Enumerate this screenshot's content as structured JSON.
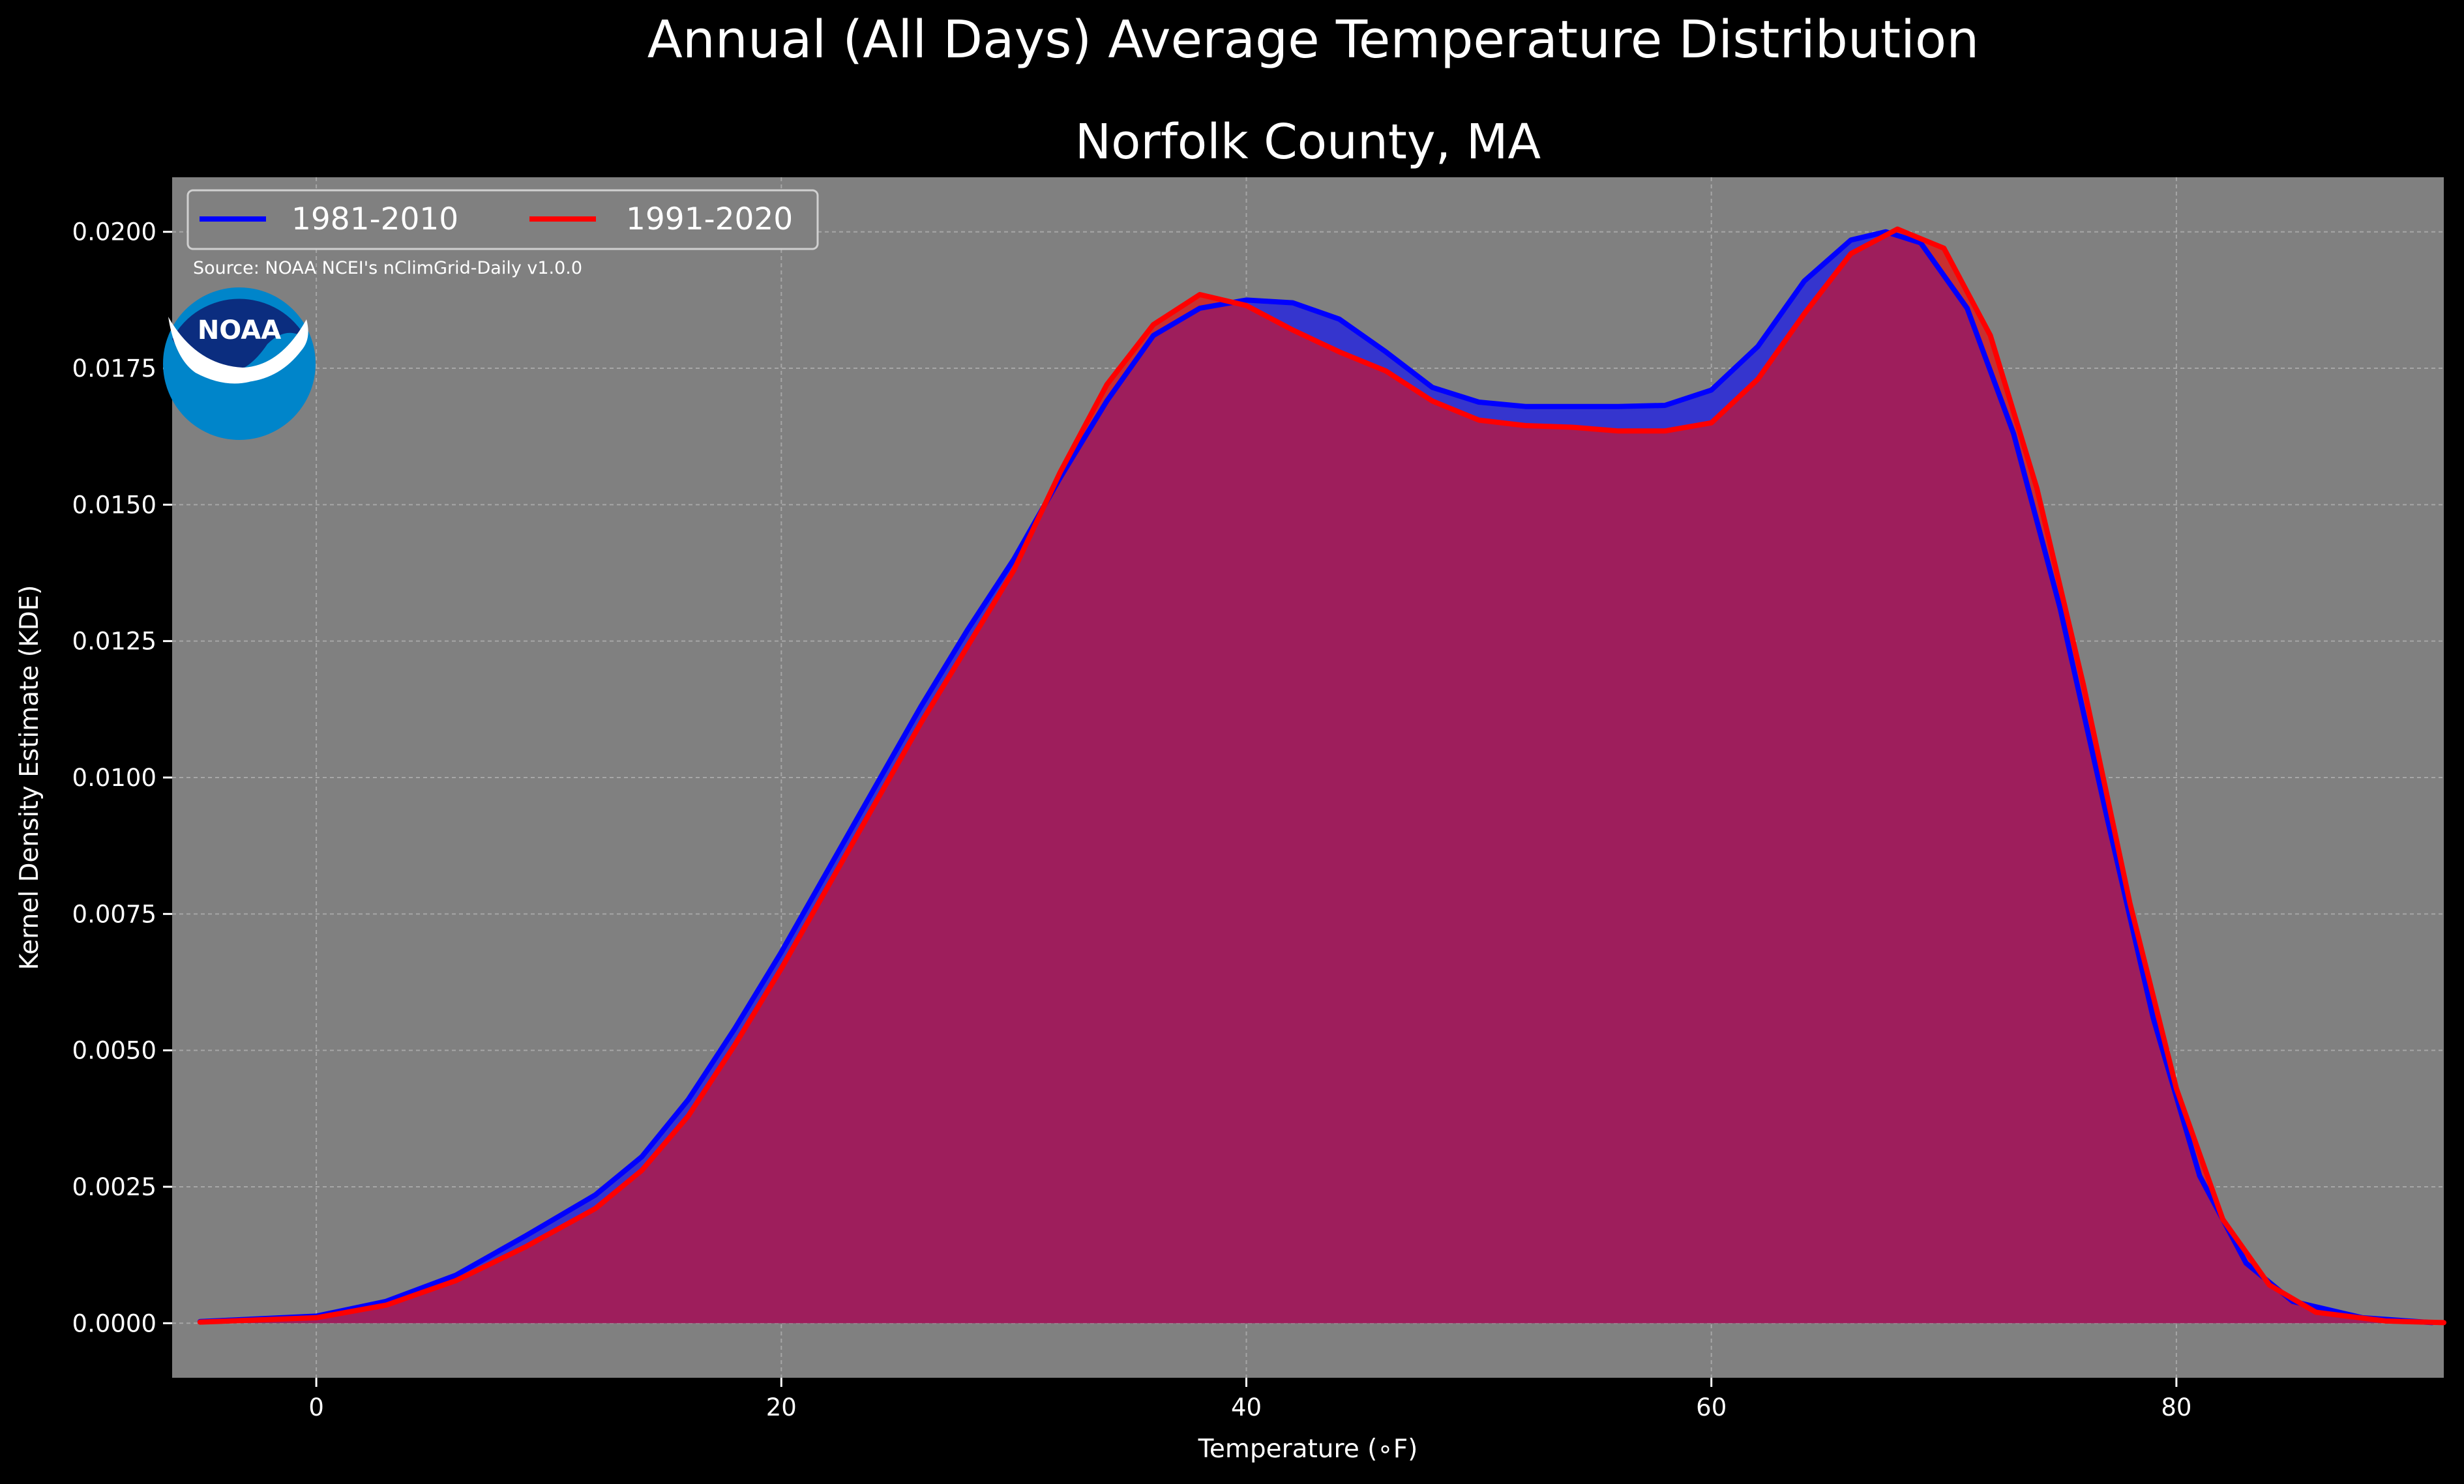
{
  "chart_data": {
    "type": "area",
    "title": "Annual (All Days) Average Temperature Distribution",
    "subtitle": "Norfolk County, MA",
    "xlabel": "Temperature (∘F)",
    "ylabel": "Kernel Density Estimate (KDE)",
    "source_note": "Source: NOAA NCEI's nClimGrid-Daily v1.0.0",
    "logo_text": "NOAA",
    "xlim": [
      -6.2,
      91.5
    ],
    "ylim": [
      -0.001,
      0.021
    ],
    "x_ticks": [
      0,
      20,
      40,
      60,
      80
    ],
    "x_tick_labels": [
      "0",
      "20",
      "40",
      "60",
      "80"
    ],
    "y_ticks": [
      0.0,
      0.0025,
      0.005,
      0.0075,
      0.01,
      0.0125,
      0.015,
      0.0175,
      0.02
    ],
    "y_tick_labels": [
      "0.0000",
      "0.0025",
      "0.0050",
      "0.0075",
      "0.0100",
      "0.0125",
      "0.0150",
      "0.0175",
      "0.0200"
    ],
    "grid": true,
    "legend_position": "top-left",
    "colors": {
      "figure_background": "#000000",
      "plot_background": "#808080",
      "text": "#ffffff",
      "overlap_fill": "#9e1e5c"
    },
    "series": [
      {
        "name": "1981-2010",
        "color": "#0000ff",
        "fill": "#3535ce",
        "x": [
          -5,
          0,
          3,
          6,
          9,
          12,
          14,
          16,
          18,
          20,
          22,
          24,
          26,
          28,
          30,
          32,
          34,
          36,
          38,
          40,
          42,
          44,
          46,
          48,
          50,
          52,
          54,
          56,
          58,
          60,
          62,
          64,
          66,
          67.5,
          69,
          71,
          73,
          75,
          77,
          79,
          81,
          83,
          85,
          88,
          91
        ],
        "y": [
          3e-05,
          0.00013,
          0.0004,
          0.00088,
          0.0016,
          0.00235,
          0.00305,
          0.0041,
          0.0054,
          0.0068,
          0.0083,
          0.0098,
          0.0113,
          0.0127,
          0.014,
          0.0155,
          0.0169,
          0.0181,
          0.0186,
          0.01875,
          0.0187,
          0.0184,
          0.0178,
          0.01715,
          0.01688,
          0.0168,
          0.0168,
          0.0168,
          0.01682,
          0.0171,
          0.0179,
          0.0191,
          0.01985,
          0.02,
          0.0198,
          0.0186,
          0.0163,
          0.0131,
          0.0093,
          0.0056,
          0.0027,
          0.0011,
          0.0004,
          0.0001,
          1e-05
        ]
      },
      {
        "name": "1991-2020",
        "color": "#ff0000",
        "fill": "#c83030",
        "x": [
          -5,
          0,
          3,
          6,
          9,
          12,
          14,
          16,
          18,
          20,
          22,
          24,
          26,
          28,
          30,
          32,
          34,
          36,
          38,
          40,
          42,
          44,
          46,
          48,
          50,
          52,
          54,
          56,
          58,
          60,
          62,
          64,
          66,
          68,
          70,
          72,
          74,
          76,
          78,
          80,
          82,
          84,
          86,
          89,
          91.5
        ],
        "y": [
          2e-05,
          0.0001,
          0.00033,
          0.00078,
          0.0014,
          0.0021,
          0.0028,
          0.0038,
          0.0051,
          0.0065,
          0.008,
          0.0095,
          0.011,
          0.0124,
          0.0138,
          0.0156,
          0.0172,
          0.0183,
          0.01885,
          0.01865,
          0.0182,
          0.0178,
          0.01745,
          0.0169,
          0.01655,
          0.01645,
          0.01642,
          0.01635,
          0.01635,
          0.0165,
          0.0173,
          0.0185,
          0.0196,
          0.02005,
          0.0197,
          0.0181,
          0.0153,
          0.0117,
          0.0077,
          0.0043,
          0.0019,
          0.0007,
          0.0002,
          4e-05,
          1e-05
        ]
      }
    ]
  }
}
